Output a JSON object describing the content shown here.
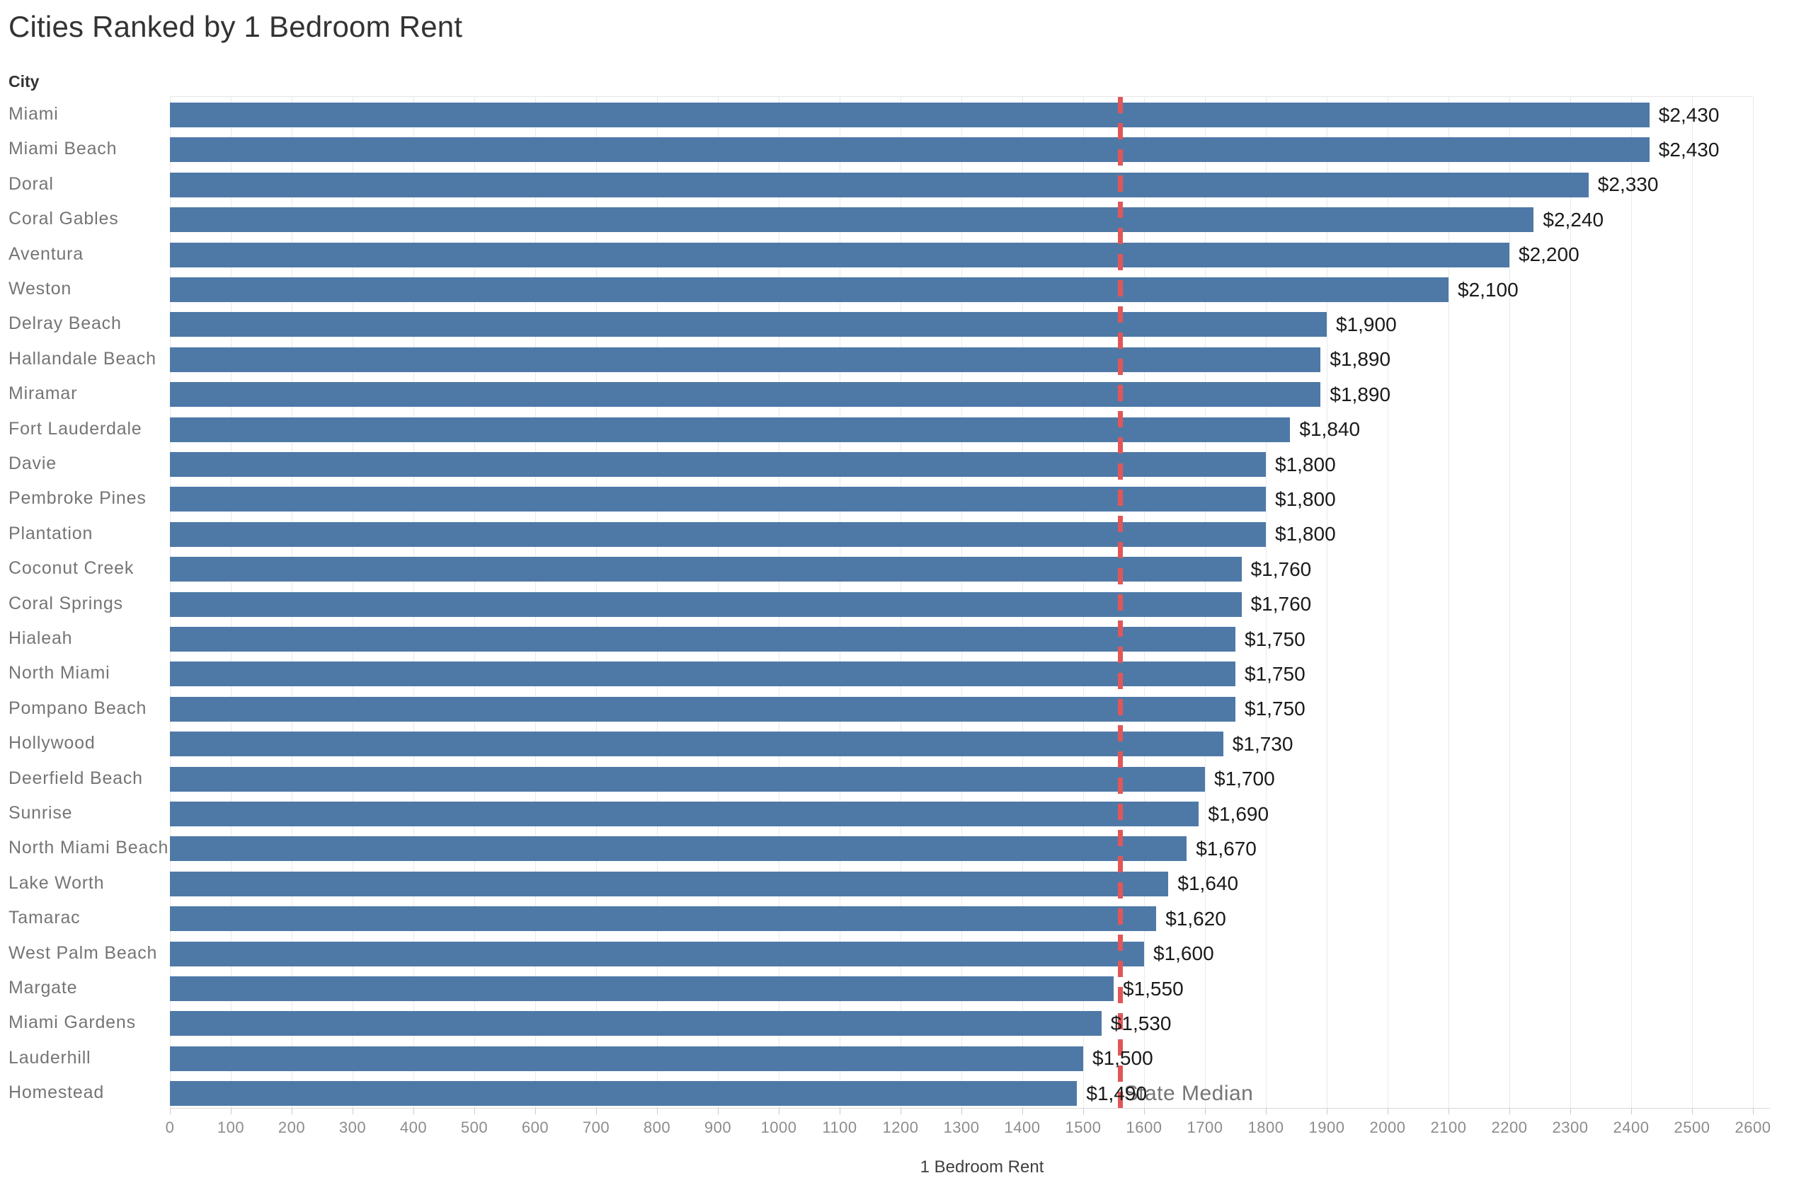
{
  "title": "Cities Ranked by 1 Bedroom Rent",
  "row_header": "City",
  "colors": {
    "bar": "#4e79a7",
    "reference_line": "#e15759",
    "gridline": "#e9e9e9",
    "city_label": "#757575",
    "value_label": "#1a1a1a"
  },
  "reference_line": {
    "label": "State Median",
    "value": 1560,
    "style": "dashed"
  },
  "chart_data": {
    "type": "bar",
    "orientation": "horizontal",
    "title": "Cities Ranked by 1 Bedroom Rent",
    "xlabel": "1 Bedroom Rent",
    "ylabel": "City",
    "xlim": [
      0,
      2600
    ],
    "tick_step": 100,
    "grid": true,
    "categories": [
      "Miami",
      "Miami Beach",
      "Doral",
      "Coral Gables",
      "Aventura",
      "Weston",
      "Delray Beach",
      "Hallandale Beach",
      "Miramar",
      "Fort Lauderdale",
      "Davie",
      "Pembroke Pines",
      "Plantation",
      "Coconut Creek",
      "Coral Springs",
      "Hialeah",
      "North Miami",
      "Pompano Beach",
      "Hollywood",
      "Deerfield Beach",
      "Sunrise",
      "North Miami Beach",
      "Lake Worth",
      "Tamarac",
      "West Palm Beach",
      "Margate",
      "Miami Gardens",
      "Lauderhill",
      "Homestead"
    ],
    "values": [
      2430,
      2430,
      2330,
      2240,
      2200,
      2100,
      1900,
      1890,
      1890,
      1840,
      1800,
      1800,
      1800,
      1760,
      1760,
      1750,
      1750,
      1750,
      1730,
      1700,
      1690,
      1670,
      1640,
      1620,
      1600,
      1550,
      1530,
      1500,
      1490
    ],
    "labels": [
      "$2,430",
      "$2,430",
      "$2,330",
      "$2,240",
      "$2,200",
      "$2,100",
      "$1,900",
      "$1,890",
      "$1,890",
      "$1,840",
      "$1,800",
      "$1,800",
      "$1,800",
      "$1,760",
      "$1,760",
      "$1,750",
      "$1,750",
      "$1,750",
      "$1,730",
      "$1,700",
      "$1,690",
      "$1,670",
      "$1,640",
      "$1,620",
      "$1,600",
      "$1,550",
      "$1,530",
      "$1,500",
      "$1,490"
    ],
    "annotations": [
      {
        "text": "State Median",
        "x": 1560
      }
    ]
  }
}
